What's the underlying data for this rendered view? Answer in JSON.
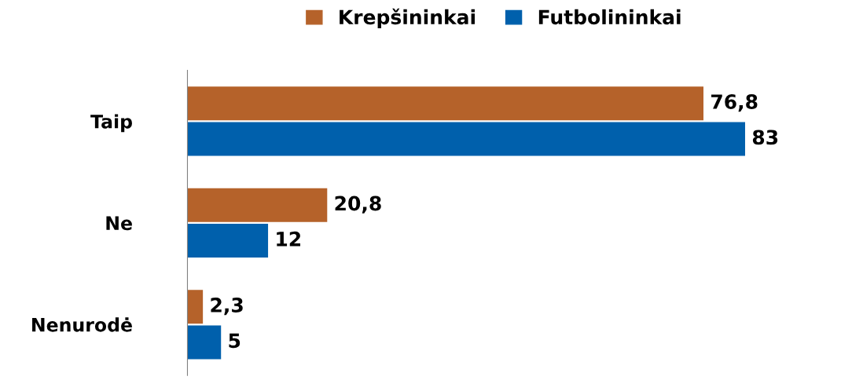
{
  "chart_data": {
    "type": "bar",
    "orientation": "horizontal",
    "categories": [
      "Taip",
      "Ne",
      "Nenurodė"
    ],
    "series": [
      {
        "name": "Krepšininkai",
        "color": "#b5622a",
        "values": [
          76.8,
          20.8,
          2.3
        ],
        "value_labels": [
          "76,8",
          "20,8",
          "2,3"
        ]
      },
      {
        "name": "Futbolininkai",
        "color": "#0060ac",
        "values": [
          83,
          12,
          5
        ],
        "value_labels": [
          "83",
          "12",
          "5"
        ]
      }
    ],
    "legend": "top",
    "grid": false
  }
}
